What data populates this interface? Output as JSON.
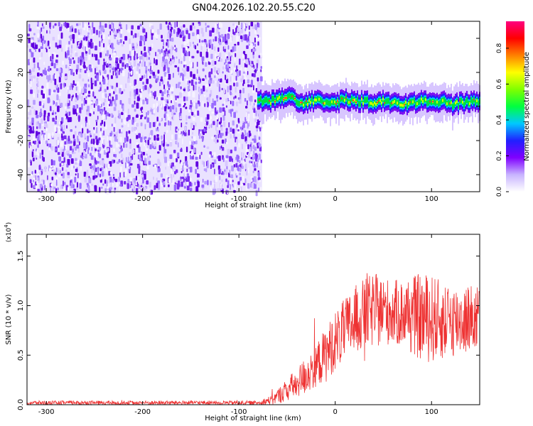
{
  "title": "GN04.2026.102.20.55.C20",
  "chart_data": [
    {
      "type": "heatmap",
      "title": "GN04.2026.102.20.55.C20",
      "xlabel": "Height of straight line (km)",
      "ylabel": "Frequency (Hz)",
      "xlim": [
        -320,
        150
      ],
      "ylim": [
        -50,
        50
      ],
      "xticks": [
        -300,
        -200,
        -100,
        0,
        100
      ],
      "yticks": [
        -40,
        -20,
        0,
        20,
        40
      ],
      "noise_region_x": [
        -320,
        -76
      ],
      "signal_trace": {
        "x": [
          -80,
          -70,
          -60,
          -50,
          -40,
          -30,
          -20,
          -10,
          0,
          10,
          20,
          30,
          40,
          50,
          60,
          70,
          80,
          90,
          100,
          110,
          120,
          130,
          140,
          150
        ],
        "y": [
          4,
          3,
          4,
          6,
          3,
          2,
          4,
          3,
          2,
          4,
          3,
          3,
          2,
          3,
          2,
          1,
          2,
          3,
          2,
          3,
          1,
          2,
          3,
          2
        ]
      },
      "colorbar": {
        "label": "Normalized spectral amplitude",
        "range": [
          0,
          0.95
        ],
        "ticks": [
          "0.0",
          "0.2",
          "0.4",
          "0.6",
          "0.8"
        ],
        "colors": [
          "#ffffff",
          "#c8b4ff",
          "#8000ff",
          "#2020ff",
          "#00c8ff",
          "#00ff40",
          "#80ff00",
          "#ffff00",
          "#ff8000",
          "#ff0000",
          "#ff0080"
        ]
      }
    },
    {
      "type": "line",
      "xlabel": "Height of straight line (km)",
      "ylabel": "SNR (10 * v/v)",
      "y_multiplier": "(x10",
      "y_multiplier_exp": "4",
      "y_multiplier_close": ")",
      "xlim": [
        -320,
        150
      ],
      "ylim": [
        0,
        1.72
      ],
      "xticks": [
        -300,
        -200,
        -100,
        0,
        100
      ],
      "yticks": [
        "0.0",
        "0.5",
        "1.0",
        "1.5"
      ],
      "series_color": "#ee3333",
      "envelope": {
        "x": [
          -320,
          -80,
          -65,
          -50,
          -40,
          -30,
          -20,
          -10,
          0,
          10,
          20,
          30,
          40,
          50,
          60,
          70,
          80,
          90,
          100,
          110,
          120,
          130,
          140,
          150
        ],
        "mid": [
          0.02,
          0.02,
          0.05,
          0.15,
          0.22,
          0.3,
          0.4,
          0.5,
          0.65,
          0.75,
          0.85,
          0.92,
          0.95,
          0.95,
          0.93,
          0.92,
          0.9,
          0.88,
          0.87,
          0.85,
          0.85,
          0.86,
          0.87,
          0.88
        ],
        "amp": [
          0.02,
          0.02,
          0.05,
          0.12,
          0.15,
          0.2,
          0.22,
          0.28,
          0.3,
          0.32,
          0.35,
          0.35,
          0.38,
          0.35,
          0.33,
          0.35,
          0.4,
          0.45,
          0.45,
          0.4,
          0.38,
          0.36,
          0.35,
          0.34
        ]
      }
    }
  ]
}
